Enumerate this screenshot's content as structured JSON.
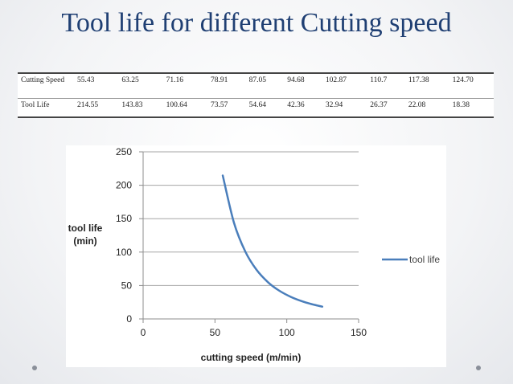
{
  "slide": {
    "title": "Tool life for different Cutting speed"
  },
  "table": {
    "rows": [
      {
        "label": "Cutting Speed",
        "values": [
          "55.43",
          "63.25",
          "71.16",
          "78.91",
          "87.05",
          "94.68",
          "102.87",
          "110.7",
          "117.38",
          "124.70"
        ]
      },
      {
        "label": "Tool Life",
        "values": [
          "214.55",
          "143.83",
          "100.64",
          "73.57",
          "54.64",
          "42.36",
          "32.94",
          "26.37",
          "22.08",
          "18.38"
        ]
      }
    ]
  },
  "chart_data": {
    "type": "line",
    "title": "",
    "xlabel": "cutting speed (m/min)",
    "ylabel": "tool life (min)",
    "ylabel_lines": [
      "tool life",
      "(min)"
    ],
    "xlim": [
      0,
      150
    ],
    "ylim": [
      0,
      250
    ],
    "x_ticks": [
      0,
      50,
      100,
      150
    ],
    "y_ticks": [
      0,
      50,
      100,
      150,
      200,
      250
    ],
    "grid": {
      "y": true,
      "x": false
    },
    "legend_position": "right",
    "series": [
      {
        "name": "tool life",
        "color": "#4a7ebb",
        "x": [
          55.43,
          63.25,
          71.16,
          78.91,
          87.05,
          94.68,
          102.87,
          110.7,
          117.38,
          124.7
        ],
        "y": [
          214.55,
          143.83,
          100.64,
          73.57,
          54.64,
          42.36,
          32.94,
          26.37,
          22.08,
          18.38
        ]
      }
    ]
  }
}
